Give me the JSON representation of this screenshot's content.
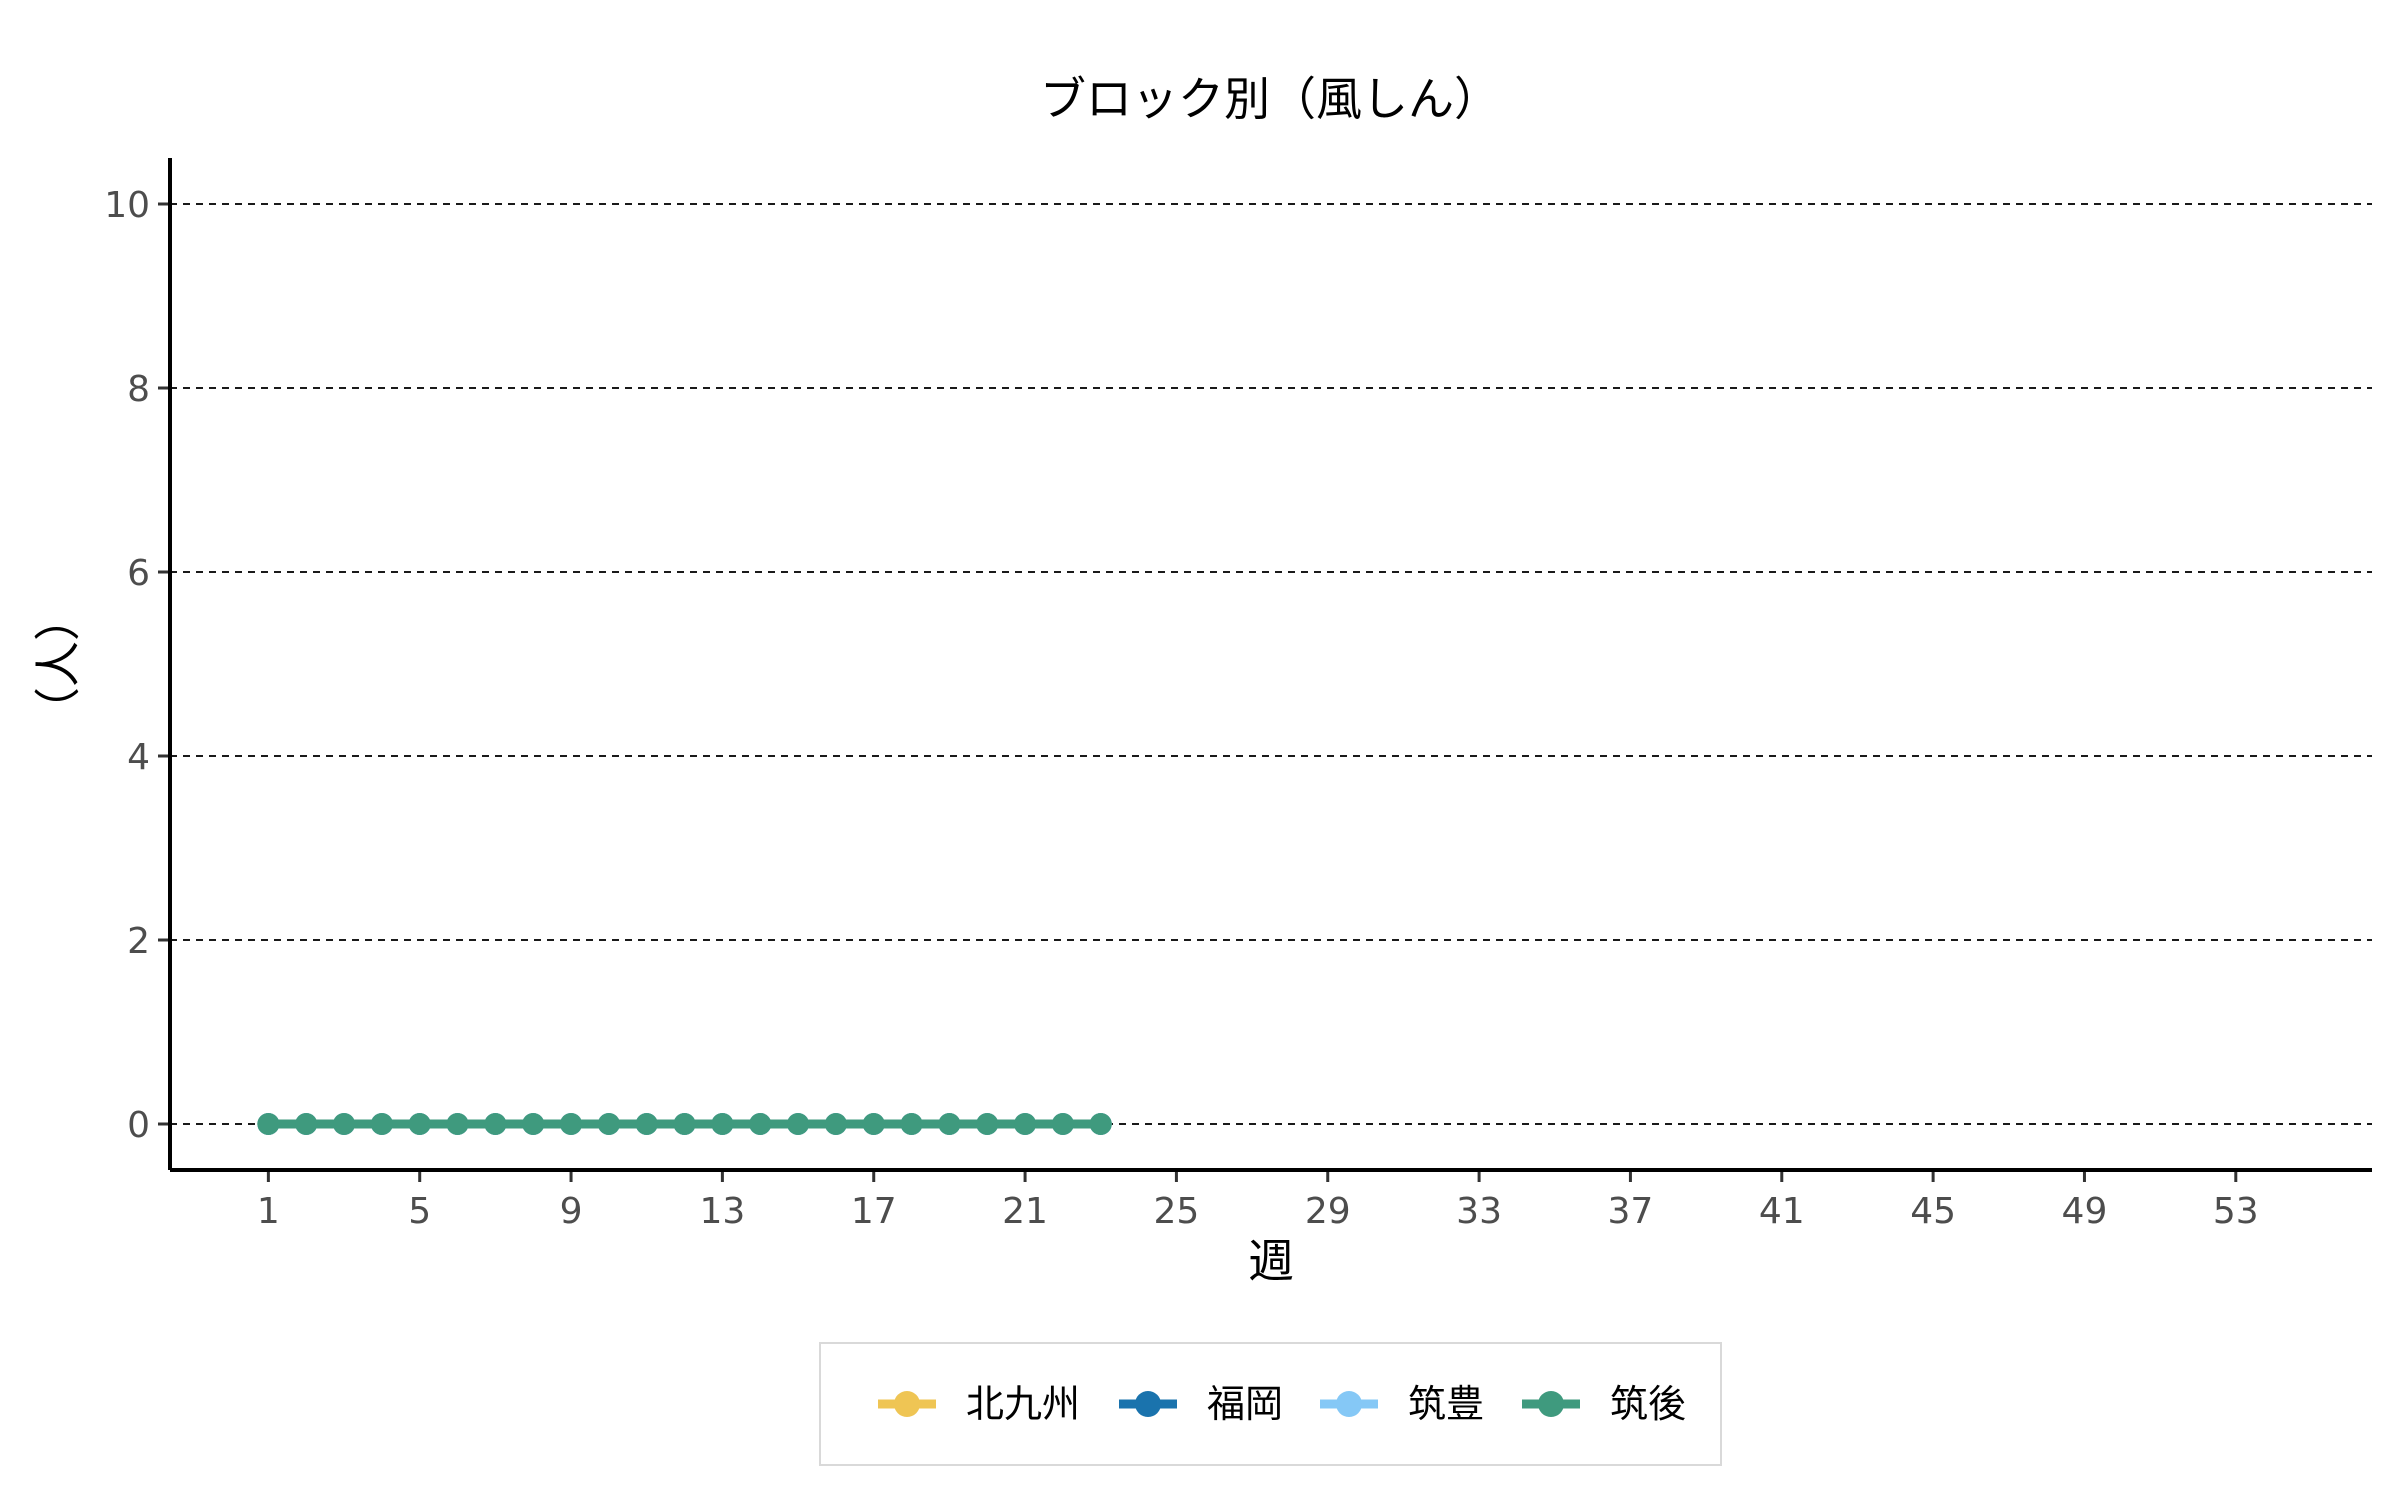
{
  "chart_data": {
    "type": "line",
    "title": "ブロック別（風しん）",
    "xlabel": "週",
    "ylabel": "（人）",
    "xlim": [
      -1.6,
      56.6
    ],
    "ylim": [
      -0.5,
      10.5
    ],
    "x_ticks": [
      1,
      5,
      9,
      13,
      17,
      21,
      25,
      29,
      33,
      37,
      41,
      45,
      49,
      53
    ],
    "y_ticks": [
      0,
      2,
      4,
      6,
      8,
      10
    ],
    "grid": "horizontal dashed",
    "legend_position": "bottom",
    "x": [
      1,
      2,
      3,
      4,
      5,
      6,
      7,
      8,
      9,
      10,
      11,
      12,
      13,
      14,
      15,
      16,
      17,
      18,
      19,
      20,
      21,
      22,
      23
    ],
    "series": [
      {
        "name": "北九州",
        "color": "#EFC554",
        "values": [
          0,
          0,
          0,
          0,
          0,
          0,
          0,
          0,
          0,
          0,
          0,
          0,
          0,
          0,
          0,
          0,
          0,
          0,
          0,
          0,
          0,
          0,
          0
        ]
      },
      {
        "name": "福岡",
        "color": "#1A73AD",
        "values": [
          0,
          0,
          0,
          0,
          0,
          0,
          0,
          0,
          0,
          0,
          0,
          0,
          0,
          0,
          0,
          0,
          0,
          0,
          0,
          0,
          0,
          0,
          0
        ]
      },
      {
        "name": "筑豊",
        "color": "#85C8F6",
        "values": [
          0,
          0,
          0,
          0,
          0,
          0,
          0,
          0,
          0,
          0,
          0,
          0,
          0,
          0,
          0,
          0,
          0,
          0,
          0,
          0,
          0,
          0,
          0
        ]
      },
      {
        "name": "筑後",
        "color": "#3F9A7E",
        "values": [
          0,
          0,
          0,
          0,
          0,
          0,
          0,
          0,
          0,
          0,
          0,
          0,
          0,
          0,
          0,
          0,
          0,
          0,
          0,
          0,
          0,
          0,
          0
        ]
      }
    ]
  }
}
